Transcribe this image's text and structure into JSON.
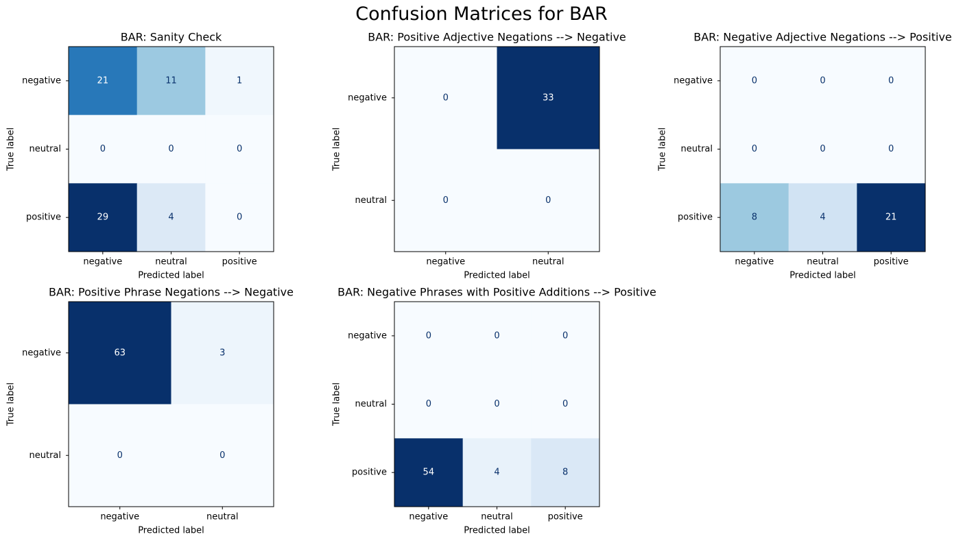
{
  "figure": {
    "suptitle": "Confusion Matrices for BAR"
  },
  "chart_data": [
    {
      "type": "heatmap",
      "title": "BAR: Sanity Check",
      "xlabel": "Predicted label",
      "ylabel": "True label",
      "x_categories": [
        "negative",
        "neutral",
        "positive"
      ],
      "y_categories": [
        "negative",
        "neutral",
        "positive"
      ],
      "values": [
        [
          21,
          11,
          1
        ],
        [
          0,
          0,
          0
        ],
        [
          29,
          4,
          0
        ]
      ],
      "colormap": "Blues",
      "colorbar": false
    },
    {
      "type": "heatmap",
      "title": "BAR: Positive Adjective Negations --> Negative",
      "xlabel": "Predicted label",
      "ylabel": "True label",
      "x_categories": [
        "negative",
        "neutral"
      ],
      "y_categories": [
        "negative",
        "neutral"
      ],
      "values": [
        [
          0,
          33
        ],
        [
          0,
          0
        ]
      ],
      "colormap": "Blues",
      "colorbar": false
    },
    {
      "type": "heatmap",
      "title": "BAR: Negative Adjective Negations --> Positive",
      "xlabel": "Predicted label",
      "ylabel": "True label",
      "x_categories": [
        "negative",
        "neutral",
        "positive"
      ],
      "y_categories": [
        "negative",
        "neutral",
        "positive"
      ],
      "values": [
        [
          0,
          0,
          0
        ],
        [
          0,
          0,
          0
        ],
        [
          8,
          4,
          21
        ]
      ],
      "colormap": "Blues",
      "colorbar": false
    },
    {
      "type": "heatmap",
      "title": "BAR: Positive Phrase Negations --> Negative",
      "xlabel": "Predicted label",
      "ylabel": "True label",
      "x_categories": [
        "negative",
        "neutral"
      ],
      "y_categories": [
        "negative",
        "neutral"
      ],
      "values": [
        [
          63,
          3
        ],
        [
          0,
          0
        ]
      ],
      "colormap": "Blues",
      "colorbar": false
    },
    {
      "type": "heatmap",
      "title": "BAR: Negative Phrases with Positive Additions --> Positive",
      "xlabel": "Predicted label",
      "ylabel": "True label",
      "x_categories": [
        "negative",
        "neutral",
        "positive"
      ],
      "y_categories": [
        "negative",
        "neutral",
        "positive"
      ],
      "values": [
        [
          0,
          0,
          0
        ],
        [
          0,
          0,
          0
        ],
        [
          54,
          4,
          8
        ]
      ],
      "colormap": "Blues",
      "colorbar": false
    }
  ]
}
